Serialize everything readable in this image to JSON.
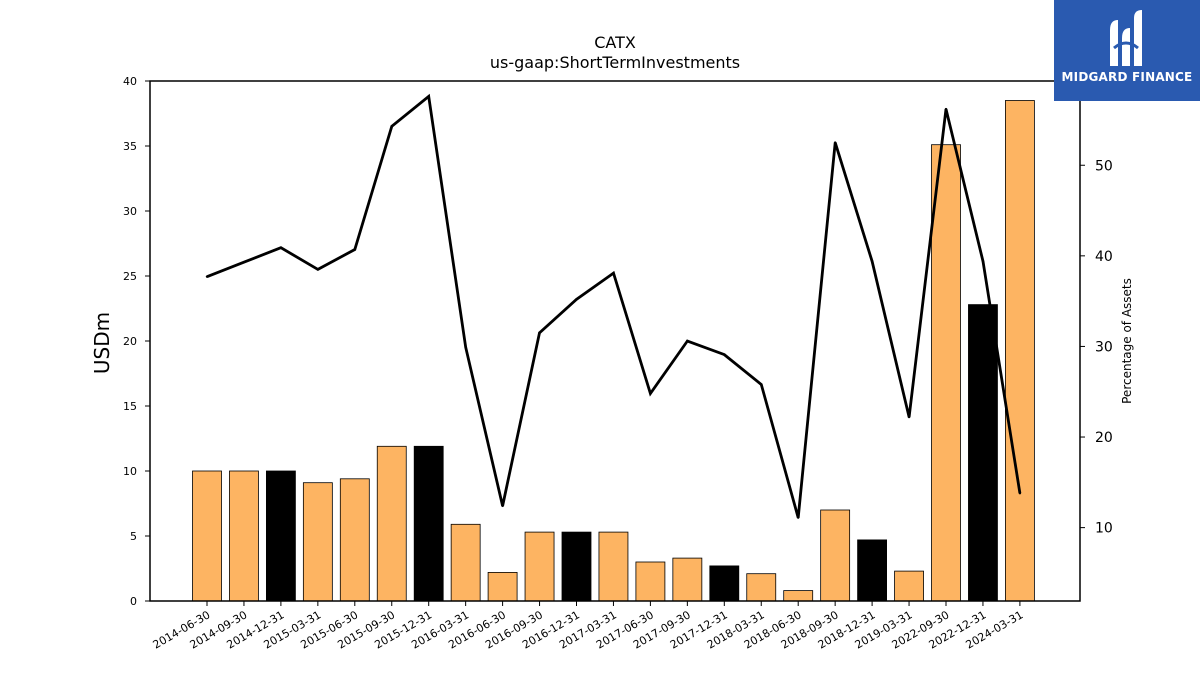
{
  "chart_data": {
    "type": "bar",
    "title": "CATX",
    "subtitle": "us-gaap:ShortTermInvestments",
    "ylabel": "USDm",
    "ylabel_right": "Percentage of Assets",
    "ylim": [
      0,
      40
    ],
    "ylim_right": [
      1.9,
      59.3
    ],
    "yticks": [
      "0",
      "5",
      "10",
      "15",
      "20",
      "25",
      "30",
      "35",
      "40"
    ],
    "yticks_right": [
      "10",
      "20",
      "30",
      "40",
      "50"
    ],
    "categories": [
      "2014-06-30",
      "2014-09-30",
      "2014-12-31",
      "2015-03-31",
      "2015-06-30",
      "2015-09-30",
      "2015-12-31",
      "2016-03-31",
      "2016-06-30",
      "2016-09-30",
      "2016-12-31",
      "2017-03-31",
      "2017-06-30",
      "2017-09-30",
      "2017-12-31",
      "2018-03-31",
      "2018-06-30",
      "2018-09-30",
      "2018-12-31",
      "2019-03-31",
      "2022-09-30",
      "2022-12-31",
      "2024-03-31"
    ],
    "series": [
      {
        "type": "bar",
        "axis": "left",
        "values": [
          10.0,
          10.0,
          10.0,
          9.1,
          9.4,
          11.9,
          11.9,
          5.9,
          2.2,
          5.3,
          5.3,
          5.3,
          3.0,
          3.3,
          2.7,
          2.1,
          0.8,
          7.0,
          4.7,
          2.3,
          35.1,
          22.8,
          38.5
        ],
        "colors": [
          "#fdb462",
          "#fdb462",
          "#000000",
          "#fdb462",
          "#fdb462",
          "#fdb462",
          "#000000",
          "#fdb462",
          "#fdb462",
          "#fdb462",
          "#000000",
          "#fdb462",
          "#fdb462",
          "#fdb462",
          "#000000",
          "#fdb462",
          "#fdb462",
          "#fdb462",
          "#000000",
          "#fdb462",
          "#fdb462",
          "#000000",
          "#fdb462"
        ]
      },
      {
        "type": "line",
        "axis": "right",
        "color": "#000000",
        "values": [
          37.7,
          39.3,
          40.9,
          38.5,
          40.7,
          54.3,
          57.6,
          29.9,
          12.4,
          31.5,
          35.2,
          38.1,
          24.8,
          30.6,
          29.1,
          25.8,
          11.1,
          52.5,
          39.4,
          22.2,
          56.2,
          39.4,
          13.8
        ]
      }
    ],
    "grid": false,
    "legend": "none"
  },
  "logo": {
    "brand_text": "MIDGARD FINANCE"
  }
}
